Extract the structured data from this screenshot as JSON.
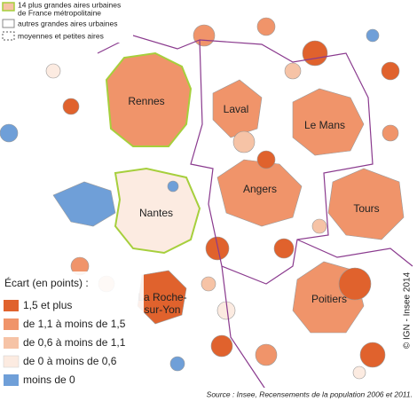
{
  "legend_top": {
    "items": [
      {
        "lines": [
          "14 plus grandes aires urbaines",
          "de France métropolitaine"
        ]
      },
      {
        "lines": [
          "autres grandes aires urbaines"
        ]
      },
      {
        "lines": [
          "moyennes et petites aires"
        ]
      }
    ]
  },
  "legend": {
    "title": "Écart (en points) :",
    "items": [
      "1,5 et plus",
      "de 1,1 à moins de 1,5",
      "de 0,6 à moins de 1,1",
      "de 0 à moins de 0,6",
      "moins de 0"
    ]
  },
  "cities": [
    {
      "lines": [
        "Rennes"
      ]
    },
    {
      "lines": [
        "Laval"
      ]
    },
    {
      "lines": [
        "Le Mans"
      ]
    },
    {
      "lines": [
        "Angers"
      ]
    },
    {
      "lines": [
        "Nantes"
      ]
    },
    {
      "lines": [
        "Tours"
      ]
    },
    {
      "lines": [
        "La Roche-",
        "sur-Yon"
      ]
    },
    {
      "lines": [
        "Poitiers"
      ]
    }
  ],
  "source": "Source : Insee, Recensements de la population 2006 et 2011.",
  "copyright": "© IGN - Insee 2014"
}
